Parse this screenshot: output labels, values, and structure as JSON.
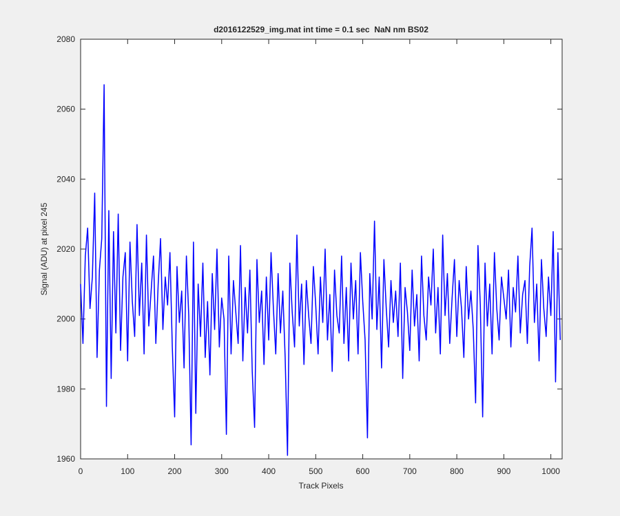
{
  "chart_data": {
    "type": "line",
    "title": "d2016122529_img.mat int time = 0.1 sec  NaN nm BS02",
    "xlabel": "Track Pixels",
    "ylabel": "Signal (ADU) at pixel 245",
    "xlim": [
      0,
      1024
    ],
    "ylim": [
      1960,
      2080
    ],
    "xticks": [
      0,
      100,
      200,
      300,
      400,
      500,
      600,
      700,
      800,
      900,
      1000
    ],
    "yticks": [
      1960,
      1980,
      2000,
      2020,
      2040,
      2060,
      2080
    ],
    "grid": false,
    "x": [
      0,
      5,
      10,
      15,
      20,
      25,
      30,
      35,
      40,
      45,
      50,
      55,
      60,
      65,
      70,
      75,
      80,
      85,
      90,
      95,
      100,
      105,
      110,
      115,
      120,
      125,
      130,
      135,
      140,
      145,
      150,
      155,
      160,
      165,
      170,
      175,
      180,
      185,
      190,
      195,
      200,
      205,
      210,
      215,
      220,
      225,
      230,
      235,
      240,
      245,
      250,
      255,
      260,
      265,
      270,
      275,
      280,
      285,
      290,
      295,
      300,
      305,
      310,
      315,
      320,
      325,
      330,
      335,
      340,
      345,
      350,
      355,
      360,
      365,
      370,
      375,
      380,
      385,
      390,
      395,
      400,
      405,
      410,
      415,
      420,
      425,
      430,
      435,
      440,
      445,
      450,
      455,
      460,
      465,
      470,
      475,
      480,
      485,
      490,
      495,
      500,
      505,
      510,
      515,
      520,
      525,
      530,
      535,
      540,
      545,
      550,
      555,
      560,
      565,
      570,
      575,
      580,
      585,
      590,
      595,
      600,
      605,
      610,
      615,
      620,
      625,
      630,
      635,
      640,
      645,
      650,
      655,
      660,
      665,
      670,
      675,
      680,
      685,
      690,
      695,
      700,
      705,
      710,
      715,
      720,
      725,
      730,
      735,
      740,
      745,
      750,
      755,
      760,
      765,
      770,
      775,
      780,
      785,
      790,
      795,
      800,
      805,
      810,
      815,
      820,
      825,
      830,
      835,
      840,
      845,
      850,
      855,
      860,
      865,
      870,
      875,
      880,
      885,
      890,
      895,
      900,
      905,
      910,
      915,
      920,
      925,
      930,
      935,
      940,
      945,
      950,
      955,
      960,
      965,
      970,
      975,
      980,
      985,
      990,
      995,
      1000,
      1005,
      1010,
      1015,
      1020
    ],
    "series": [
      {
        "name": "Signal",
        "color": "#0000ff",
        "values": [
          2010,
          1993,
          2018,
          2026,
          2003,
          2012,
          2036,
          1989,
          2014,
          2023,
          2067,
          1975,
          2031,
          1983,
          2025,
          1996,
          2030,
          1991,
          2012,
          2019,
          1988,
          2022,
          2005,
          1995,
          2027,
          2001,
          2016,
          1990,
          2024,
          1998,
          2008,
          2018,
          1993,
          2010,
          2023,
          1997,
          2012,
          2004,
          2019,
          1992,
          1972,
          2015,
          1999,
          2008,
          1986,
          2018,
          2001,
          1964,
          2022,
          1973,
          2010,
          1995,
          2016,
          1989,
          2005,
          1984,
          2013,
          1997,
          2020,
          1992,
          2006,
          2000,
          1967,
          2018,
          1990,
          2011,
          2002,
          1993,
          2021,
          1988,
          2009,
          1996,
          2014,
          1985,
          1969,
          2017,
          1999,
          2008,
          1987,
          2012,
          1994,
          2019,
          2003,
          1990,
          2013,
          1996,
          2008,
          1989,
          1961,
          2016,
          2002,
          1992,
          2024,
          1998,
          2010,
          1987,
          2011,
          2001,
          1993,
          2015,
          2004,
          1990,
          2012,
          1999,
          2020,
          1994,
          2007,
          1985,
          2014,
          2001,
          1996,
          2018,
          1993,
          2009,
          1988,
          2016,
          2000,
          2011,
          1990,
          2019,
          2005,
          1994,
          1966,
          2013,
          2000,
          2028,
          1997,
          2012,
          1986,
          2017,
          2003,
          1992,
          2011,
          1999,
          2008,
          1995,
          2016,
          1983,
          2009,
          2002,
          1991,
          2014,
          1998,
          2007,
          1988,
          2018,
          2001,
          1994,
          2012,
          2004,
          2020,
          1996,
          2009,
          1990,
          2024,
          2001,
          2013,
          1993,
          2006,
          2017,
          1995,
          2011,
          2003,
          1989,
          2015,
          2000,
          2008,
          1997,
          1976,
          2021,
          2004,
          1972,
          2016,
          1998,
          2010,
          1990,
          2019,
          2003,
          1994,
          2012,
          2006,
          2000,
          2014,
          1992,
          2009,
          2002,
          2018,
          1996,
          2007,
          2011,
          1993,
          2015,
          2026,
          1999,
          2010,
          1988,
          2017,
          2003,
          1995,
          2012,
          2001,
          2025,
          1982,
          2019,
          1994
        ]
      }
    ]
  }
}
